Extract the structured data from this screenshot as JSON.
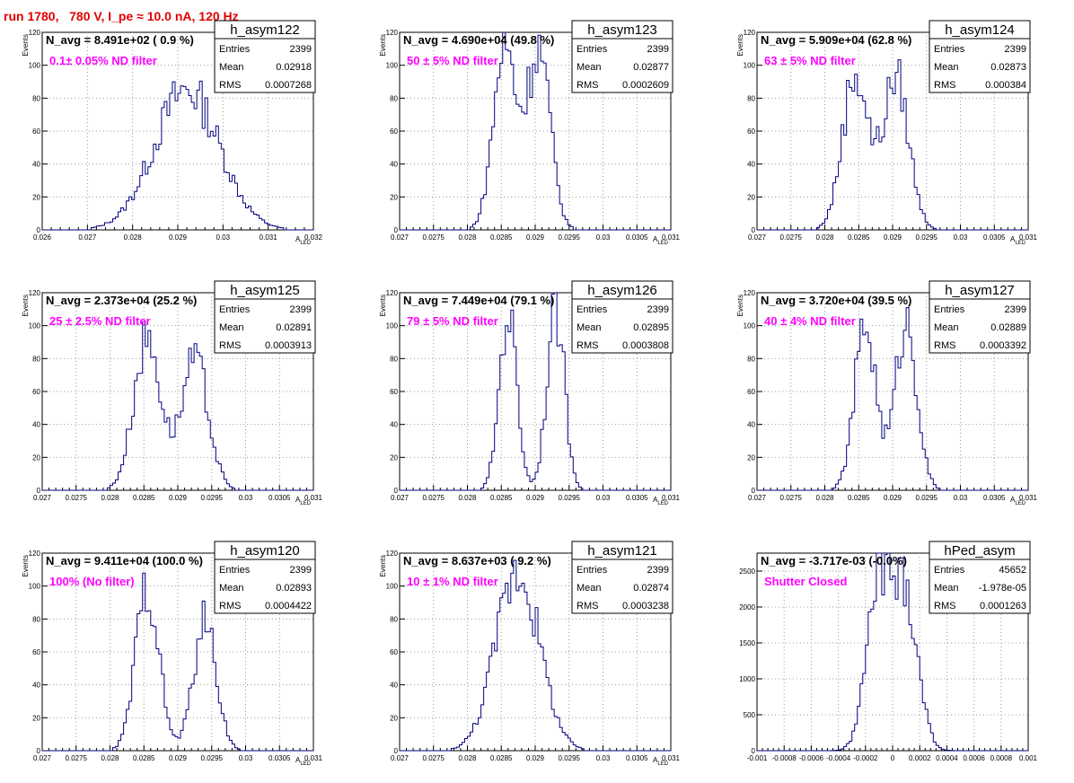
{
  "page": {
    "title": "run 1780,   780 V, I_pe ≈ 10.0 nA, 120 Hz",
    "colors": {
      "title": "#e00000",
      "series": "#000080",
      "annotation": "#ff00ff",
      "grid": "#9a9a9a"
    }
  },
  "chart_data": [
    {
      "type": "bar",
      "histogram": "h_asym122",
      "stats": {
        "entries_label": "Entries",
        "entries": "2399",
        "mean_label": "Mean",
        "mean": "0.02918",
        "rms_label": "RMS",
        "rms": "0.0007268"
      },
      "n_avg_text": "N_avg = 8.491e+02 ( 0.9 %)",
      "annotation": "0.1± 0.05% ND filter",
      "ylabel": "Events",
      "xlabel": "A_LED",
      "xlim": [
        0.026,
        0.032
      ],
      "ylim": [
        0,
        120
      ],
      "xticks": [
        "0.026",
        "0.027",
        "0.028",
        "0.029",
        "0.03",
        "0.031",
        "0.032"
      ],
      "yticks": [
        "0",
        "20",
        "40",
        "60",
        "80",
        "100",
        "120"
      ],
      "grid": true,
      "shape": "single_gaussian",
      "peaks": [
        {
          "x": 0.0292,
          "height": 85,
          "sigma": 0.00072
        }
      ]
    },
    {
      "type": "bar",
      "histogram": "h_asym123",
      "stats": {
        "entries_label": "Entries",
        "entries": "2399",
        "mean_label": "Mean",
        "mean": "0.02877",
        "rms_label": "RMS",
        "rms": "0.0002609"
      },
      "n_avg_text": "N_avg = 4.690e+04 (49.8 %)",
      "annotation": "50 ± 5% ND filter",
      "ylabel": "Events",
      "xlabel": "A_LED",
      "xlim": [
        0.027,
        0.031
      ],
      "ylim": [
        0,
        120
      ],
      "xticks": [
        "0.027",
        "0.0275",
        "0.028",
        "0.0285",
        "0.029",
        "0.0295",
        "0.03",
        "0.0305",
        "0.031"
      ],
      "yticks": [
        "0",
        "20",
        "40",
        "60",
        "80",
        "100",
        "120"
      ],
      "grid": true,
      "shape": "double_gaussian",
      "peaks": [
        {
          "x": 0.02855,
          "height": 110,
          "sigma": 0.00017
        },
        {
          "x": 0.02905,
          "height": 110,
          "sigma": 0.00017
        }
      ]
    },
    {
      "type": "bar",
      "histogram": "h_asym124",
      "stats": {
        "entries_label": "Entries",
        "entries": "2399",
        "mean_label": "Mean",
        "mean": "0.02873",
        "rms_label": "RMS",
        "rms": "0.000384"
      },
      "n_avg_text": "N_avg = 5.909e+04 (62.8 %)",
      "annotation": "63 ± 5% ND filter",
      "ylabel": "Events",
      "xlabel": "A_LED",
      "xlim": [
        0.027,
        0.031
      ],
      "ylim": [
        0,
        120
      ],
      "xticks": [
        "0.027",
        "0.0275",
        "0.028",
        "0.0285",
        "0.029",
        "0.0295",
        "0.03",
        "0.0305",
        "0.031"
      ],
      "yticks": [
        "0",
        "20",
        "40",
        "60",
        "80",
        "100",
        "120"
      ],
      "grid": true,
      "shape": "double_gaussian",
      "peaks": [
        {
          "x": 0.02845,
          "height": 95,
          "sigma": 0.00019
        },
        {
          "x": 0.02905,
          "height": 92,
          "sigma": 0.00019
        }
      ]
    },
    {
      "type": "bar",
      "histogram": "h_asym125",
      "stats": {
        "entries_label": "Entries",
        "entries": "2399",
        "mean_label": "Mean",
        "mean": "0.02891",
        "rms_label": "RMS",
        "rms": "0.0003913"
      },
      "n_avg_text": "N_avg = 2.373e+04 (25.2 %)",
      "annotation": "25 ± 2.5% ND filter",
      "ylabel": "Events",
      "xlabel": "A_LED",
      "xlim": [
        0.027,
        0.031
      ],
      "ylim": [
        0,
        120
      ],
      "xticks": [
        "0.027",
        "0.0275",
        "0.028",
        "0.0285",
        "0.029",
        "0.0295",
        "0.03",
        "0.0305",
        "0.031"
      ],
      "yticks": [
        "0",
        "20",
        "40",
        "60",
        "80",
        "100",
        "120"
      ],
      "grid": true,
      "shape": "double_gaussian",
      "peaks": [
        {
          "x": 0.02855,
          "height": 92,
          "sigma": 0.0002
        },
        {
          "x": 0.02925,
          "height": 78,
          "sigma": 0.0002
        }
      ]
    },
    {
      "type": "bar",
      "histogram": "h_asym126",
      "stats": {
        "entries_label": "Entries",
        "entries": "2399",
        "mean_label": "Mean",
        "mean": "0.02895",
        "rms_label": "RMS",
        "rms": "0.0003808"
      },
      "n_avg_text": "N_avg = 7.449e+04 (79.1 %)",
      "annotation": "79 ± 5% ND filter",
      "ylabel": "Events",
      "xlabel": "A_LED",
      "xlim": [
        0.027,
        0.031
      ],
      "ylim": [
        0,
        120
      ],
      "xticks": [
        "0.027",
        "0.0275",
        "0.028",
        "0.0285",
        "0.029",
        "0.0295",
        "0.03",
        "0.0305",
        "0.031"
      ],
      "yticks": [
        "0",
        "20",
        "40",
        "60",
        "80",
        "100",
        "120"
      ],
      "grid": true,
      "shape": "double_gaussian",
      "peaks": [
        {
          "x": 0.0286,
          "height": 108,
          "sigma": 0.00013
        },
        {
          "x": 0.0293,
          "height": 110,
          "sigma": 0.00013
        }
      ]
    },
    {
      "type": "bar",
      "histogram": "h_asym127",
      "stats": {
        "entries_label": "Entries",
        "entries": "2399",
        "mean_label": "Mean",
        "mean": "0.02889",
        "rms_label": "RMS",
        "rms": "0.0003392"
      },
      "n_avg_text": "N_avg = 3.720e+04 (39.5 %)",
      "annotation": "40 ± 4% ND filter",
      "ylabel": "Events",
      "xlabel": "A_LED",
      "xlim": [
        0.027,
        0.031
      ],
      "ylim": [
        0,
        120
      ],
      "xticks": [
        "0.027",
        "0.0275",
        "0.028",
        "0.0285",
        "0.029",
        "0.0295",
        "0.03",
        "0.0305",
        "0.031"
      ],
      "yticks": [
        "0",
        "20",
        "40",
        "60",
        "80",
        "100",
        "120"
      ],
      "grid": true,
      "shape": "double_gaussian",
      "peaks": [
        {
          "x": 0.0286,
          "height": 100,
          "sigma": 0.00016
        },
        {
          "x": 0.0292,
          "height": 102,
          "sigma": 0.00016
        }
      ]
    },
    {
      "type": "bar",
      "histogram": "h_asym120",
      "stats": {
        "entries_label": "Entries",
        "entries": "2399",
        "mean_label": "Mean",
        "mean": "0.02893",
        "rms_label": "RMS",
        "rms": "0.0004422"
      },
      "n_avg_text": "N_avg = 9.411e+04 (100.0 %)",
      "annotation": "100% (No filter)",
      "ylabel": "Events",
      "xlabel": "A_LED",
      "xlim": [
        0.027,
        0.031
      ],
      "ylim": [
        0,
        120
      ],
      "xticks": [
        "0.027",
        "0.0275",
        "0.028",
        "0.0285",
        "0.029",
        "0.0295",
        "0.03",
        "0.0305",
        "0.031"
      ],
      "yticks": [
        "0",
        "20",
        "40",
        "60",
        "80",
        "100",
        "120"
      ],
      "grid": true,
      "shape": "double_gaussian",
      "peaks": [
        {
          "x": 0.02855,
          "height": 100,
          "sigma": 0.00017
        },
        {
          "x": 0.0294,
          "height": 78,
          "sigma": 0.00017
        }
      ]
    },
    {
      "type": "bar",
      "histogram": "h_asym121",
      "stats": {
        "entries_label": "Entries",
        "entries": "2399",
        "mean_label": "Mean",
        "mean": "0.02874",
        "rms_label": "RMS",
        "rms": "0.0003238"
      },
      "n_avg_text": "N_avg = 8.637e+03 ( 9.2 %)",
      "annotation": "10 ± 1% ND filter",
      "ylabel": "Events",
      "xlabel": "A_LED",
      "xlim": [
        0.027,
        0.031
      ],
      "ylim": [
        0,
        120
      ],
      "xticks": [
        "0.027",
        "0.0275",
        "0.028",
        "0.0285",
        "0.029",
        "0.0295",
        "0.03",
        "0.0305",
        "0.031"
      ],
      "yticks": [
        "0",
        "20",
        "40",
        "60",
        "80",
        "100",
        "120"
      ],
      "grid": true,
      "shape": "single_gaussian",
      "peaks": [
        {
          "x": 0.02874,
          "height": 110,
          "sigma": 0.00032
        }
      ]
    },
    {
      "type": "bar",
      "histogram": "hPed_asym",
      "stats": {
        "entries_label": "Entries",
        "entries": "45652",
        "mean_label": "Mean",
        "mean": "-1.978e-05",
        "rms_label": "RMS",
        "rms": "0.0001263"
      },
      "n_avg_text": "N_avg = -3.717e-03 (-0.0%)",
      "annotation": "Shutter Closed",
      "ylabel": "",
      "xlabel": "",
      "xlim": [
        -0.001,
        0.001
      ],
      "ylim": [
        0,
        2750
      ],
      "xticks": [
        "-0.001",
        "-0.0008",
        "-0.0006",
        "-0.0004",
        "-0.0002",
        "0",
        "0.0002",
        "0.0004",
        "0.0006",
        "0.0008",
        "0.001"
      ],
      "yticks": [
        "0",
        "500",
        "1000",
        "1500",
        "2000",
        "2500"
      ],
      "yticks_numeric": [
        0,
        500,
        1000,
        1500,
        2000,
        2500
      ],
      "grid": true,
      "shape": "double_gaussian",
      "peaks": [
        {
          "x": -0.0001,
          "height": 2350,
          "sigma": 9e-05
        },
        {
          "x": 0.0001,
          "height": 2100,
          "sigma": 9e-05
        }
      ]
    }
  ]
}
